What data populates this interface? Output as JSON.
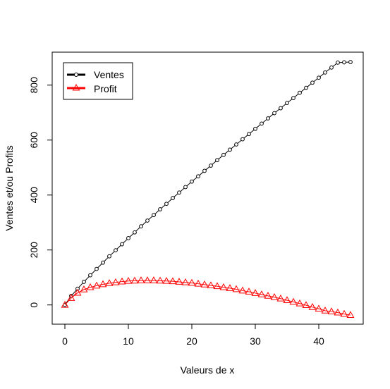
{
  "chart_data": {
    "type": "line",
    "xlabel": "Valeurs de x",
    "ylabel": "Ventes et/ou Profits",
    "xlim": [
      -2,
      47
    ],
    "ylim": [
      -70,
      920
    ],
    "xticks": [
      0,
      10,
      20,
      30,
      40
    ],
    "yticks": [
      0,
      200,
      400,
      600,
      800
    ],
    "grid": false,
    "legend_position": "top-left",
    "x": [
      0,
      1,
      2,
      3,
      4,
      5,
      6,
      7,
      8,
      9,
      10,
      11,
      12,
      13,
      14,
      15,
      16,
      17,
      18,
      19,
      20,
      21,
      22,
      23,
      24,
      25,
      26,
      27,
      28,
      29,
      30,
      31,
      32,
      33,
      34,
      35,
      36,
      37,
      38,
      39,
      40,
      41,
      42,
      43,
      44,
      45
    ],
    "series": [
      {
        "name": "Ventes",
        "color": "#000000",
        "marker": "circle",
        "values": [
          0,
          33,
          59,
          84,
          108,
          131,
          154,
          177,
          199,
          221,
          243,
          264,
          286,
          307,
          327,
          348,
          368,
          389,
          409,
          429,
          449,
          468,
          488,
          507,
          527,
          546,
          565,
          584,
          603,
          622,
          641,
          660,
          679,
          698,
          716,
          735,
          753,
          772,
          790,
          809,
          827,
          846,
          864,
          882,
          883,
          884
        ]
      },
      {
        "name": "Profit",
        "color": "#ff0000",
        "marker": "triangle",
        "values": [
          0,
          25,
          44,
          56,
          64,
          70,
          75,
          79,
          82,
          85,
          87,
          88,
          89,
          89,
          89,
          88,
          87,
          86,
          84,
          82,
          80,
          77,
          74,
          71,
          68,
          64,
          61,
          57,
          52,
          48,
          43,
          38,
          33,
          28,
          23,
          17,
          11,
          5,
          -1,
          -8,
          -14,
          -21,
          -24,
          -28,
          -33,
          -37
        ]
      }
    ]
  }
}
